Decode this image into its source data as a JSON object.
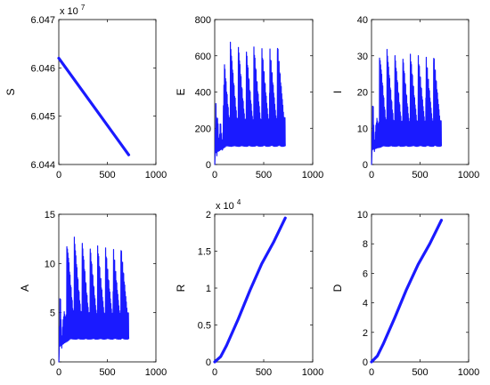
{
  "colors": {
    "series": "#1a1aff",
    "axis": "#000000",
    "background": "#ffffff"
  },
  "chart_data": [
    {
      "type": "line",
      "ylabel": "S",
      "xlabel": "",
      "xlim": [
        0,
        1000
      ],
      "ylim": [
        6.044,
        6.047
      ],
      "x_ticks": [
        "0",
        "500",
        "1000"
      ],
      "y_ticks": [
        "6.044",
        "6.045",
        "6.046",
        "6.047"
      ],
      "multiplier": {
        "base": "x 10",
        "exp": "7"
      },
      "x": [
        0,
        720
      ],
      "y": [
        6.0462,
        6.0442
      ]
    },
    {
      "type": "line",
      "ylabel": "E",
      "xlabel": "",
      "xlim": [
        0,
        1000
      ],
      "ylim": [
        0,
        800
      ],
      "x_ticks": [
        "0",
        "500",
        "1000"
      ],
      "y_ticks": [
        "0",
        "200",
        "400",
        "600",
        "800"
      ],
      "multiplier": null,
      "x": [
        0,
        15,
        22,
        30,
        45,
        60,
        80,
        100,
        180,
        260,
        340,
        420,
        500,
        580,
        660,
        720
      ],
      "y": [
        0,
        470,
        40,
        380,
        90,
        560,
        60,
        680,
        660,
        650,
        640,
        640,
        640,
        650,
        660,
        670
      ],
      "oscillation": {
        "period": 80,
        "envelope_low": [
          60,
          100
        ],
        "envelope_high": [
          470,
          680
        ]
      }
    },
    {
      "type": "line",
      "ylabel": "I",
      "xlabel": "",
      "xlim": [
        0,
        1000
      ],
      "ylim": [
        0,
        40
      ],
      "x_ticks": [
        "0",
        "500",
        "1000"
      ],
      "y_ticks": [
        "0",
        "10",
        "20",
        "30",
        "40"
      ],
      "multiplier": null,
      "x": [
        0,
        15,
        30,
        60,
        100,
        180,
        260,
        340,
        420,
        500,
        580,
        660,
        720
      ],
      "y": [
        0,
        22,
        4,
        28,
        32,
        31,
        30,
        30,
        30,
        30,
        30,
        30,
        30
      ],
      "oscillation": {
        "period": 80,
        "envelope_low": [
          4,
          5
        ],
        "envelope_high": [
          22,
          32
        ]
      }
    },
    {
      "type": "line",
      "ylabel": "A",
      "xlabel": "",
      "xlim": [
        0,
        1000
      ],
      "ylim": [
        0,
        15
      ],
      "x_ticks": [
        "0",
        "500",
        "1000"
      ],
      "y_ticks": [
        "0",
        "5",
        "10",
        "15"
      ],
      "multiplier": null,
      "x": [
        0,
        15,
        30,
        60,
        100,
        180,
        260,
        340,
        420,
        500,
        580,
        660,
        720
      ],
      "y": [
        0,
        8.8,
        1.5,
        11,
        12.8,
        12.3,
        12,
        11.7,
        11.5,
        11.5,
        11.5,
        11.5,
        11.5
      ],
      "oscillation": {
        "period": 80,
        "envelope_low": [
          1.5,
          2.3
        ],
        "envelope_high": [
          8.8,
          12.8
        ]
      }
    },
    {
      "type": "line",
      "ylabel": "R",
      "xlabel": "",
      "xlim": [
        0,
        1000
      ],
      "ylim": [
        0,
        2
      ],
      "x_ticks": [
        "0",
        "500",
        "1000"
      ],
      "y_ticks": [
        "0",
        "0.5",
        "1",
        "1.5",
        "2"
      ],
      "multiplier": {
        "base": "x 10",
        "exp": "4"
      },
      "x": [
        0,
        60,
        120,
        240,
        360,
        480,
        600,
        720
      ],
      "y": [
        0,
        0.07,
        0.22,
        0.58,
        0.97,
        1.33,
        1.62,
        1.95
      ]
    },
    {
      "type": "line",
      "ylabel": "D",
      "xlabel": "",
      "xlim": [
        0,
        1000
      ],
      "ylim": [
        0,
        10
      ],
      "x_ticks": [
        "0",
        "500",
        "1000"
      ],
      "y_ticks": [
        "0",
        "2",
        "4",
        "6",
        "8",
        "10"
      ],
      "multiplier": null,
      "x": [
        0,
        60,
        120,
        240,
        360,
        480,
        600,
        720
      ],
      "y": [
        0,
        0.4,
        1.2,
        3.0,
        4.9,
        6.6,
        8.0,
        9.6
      ]
    }
  ]
}
